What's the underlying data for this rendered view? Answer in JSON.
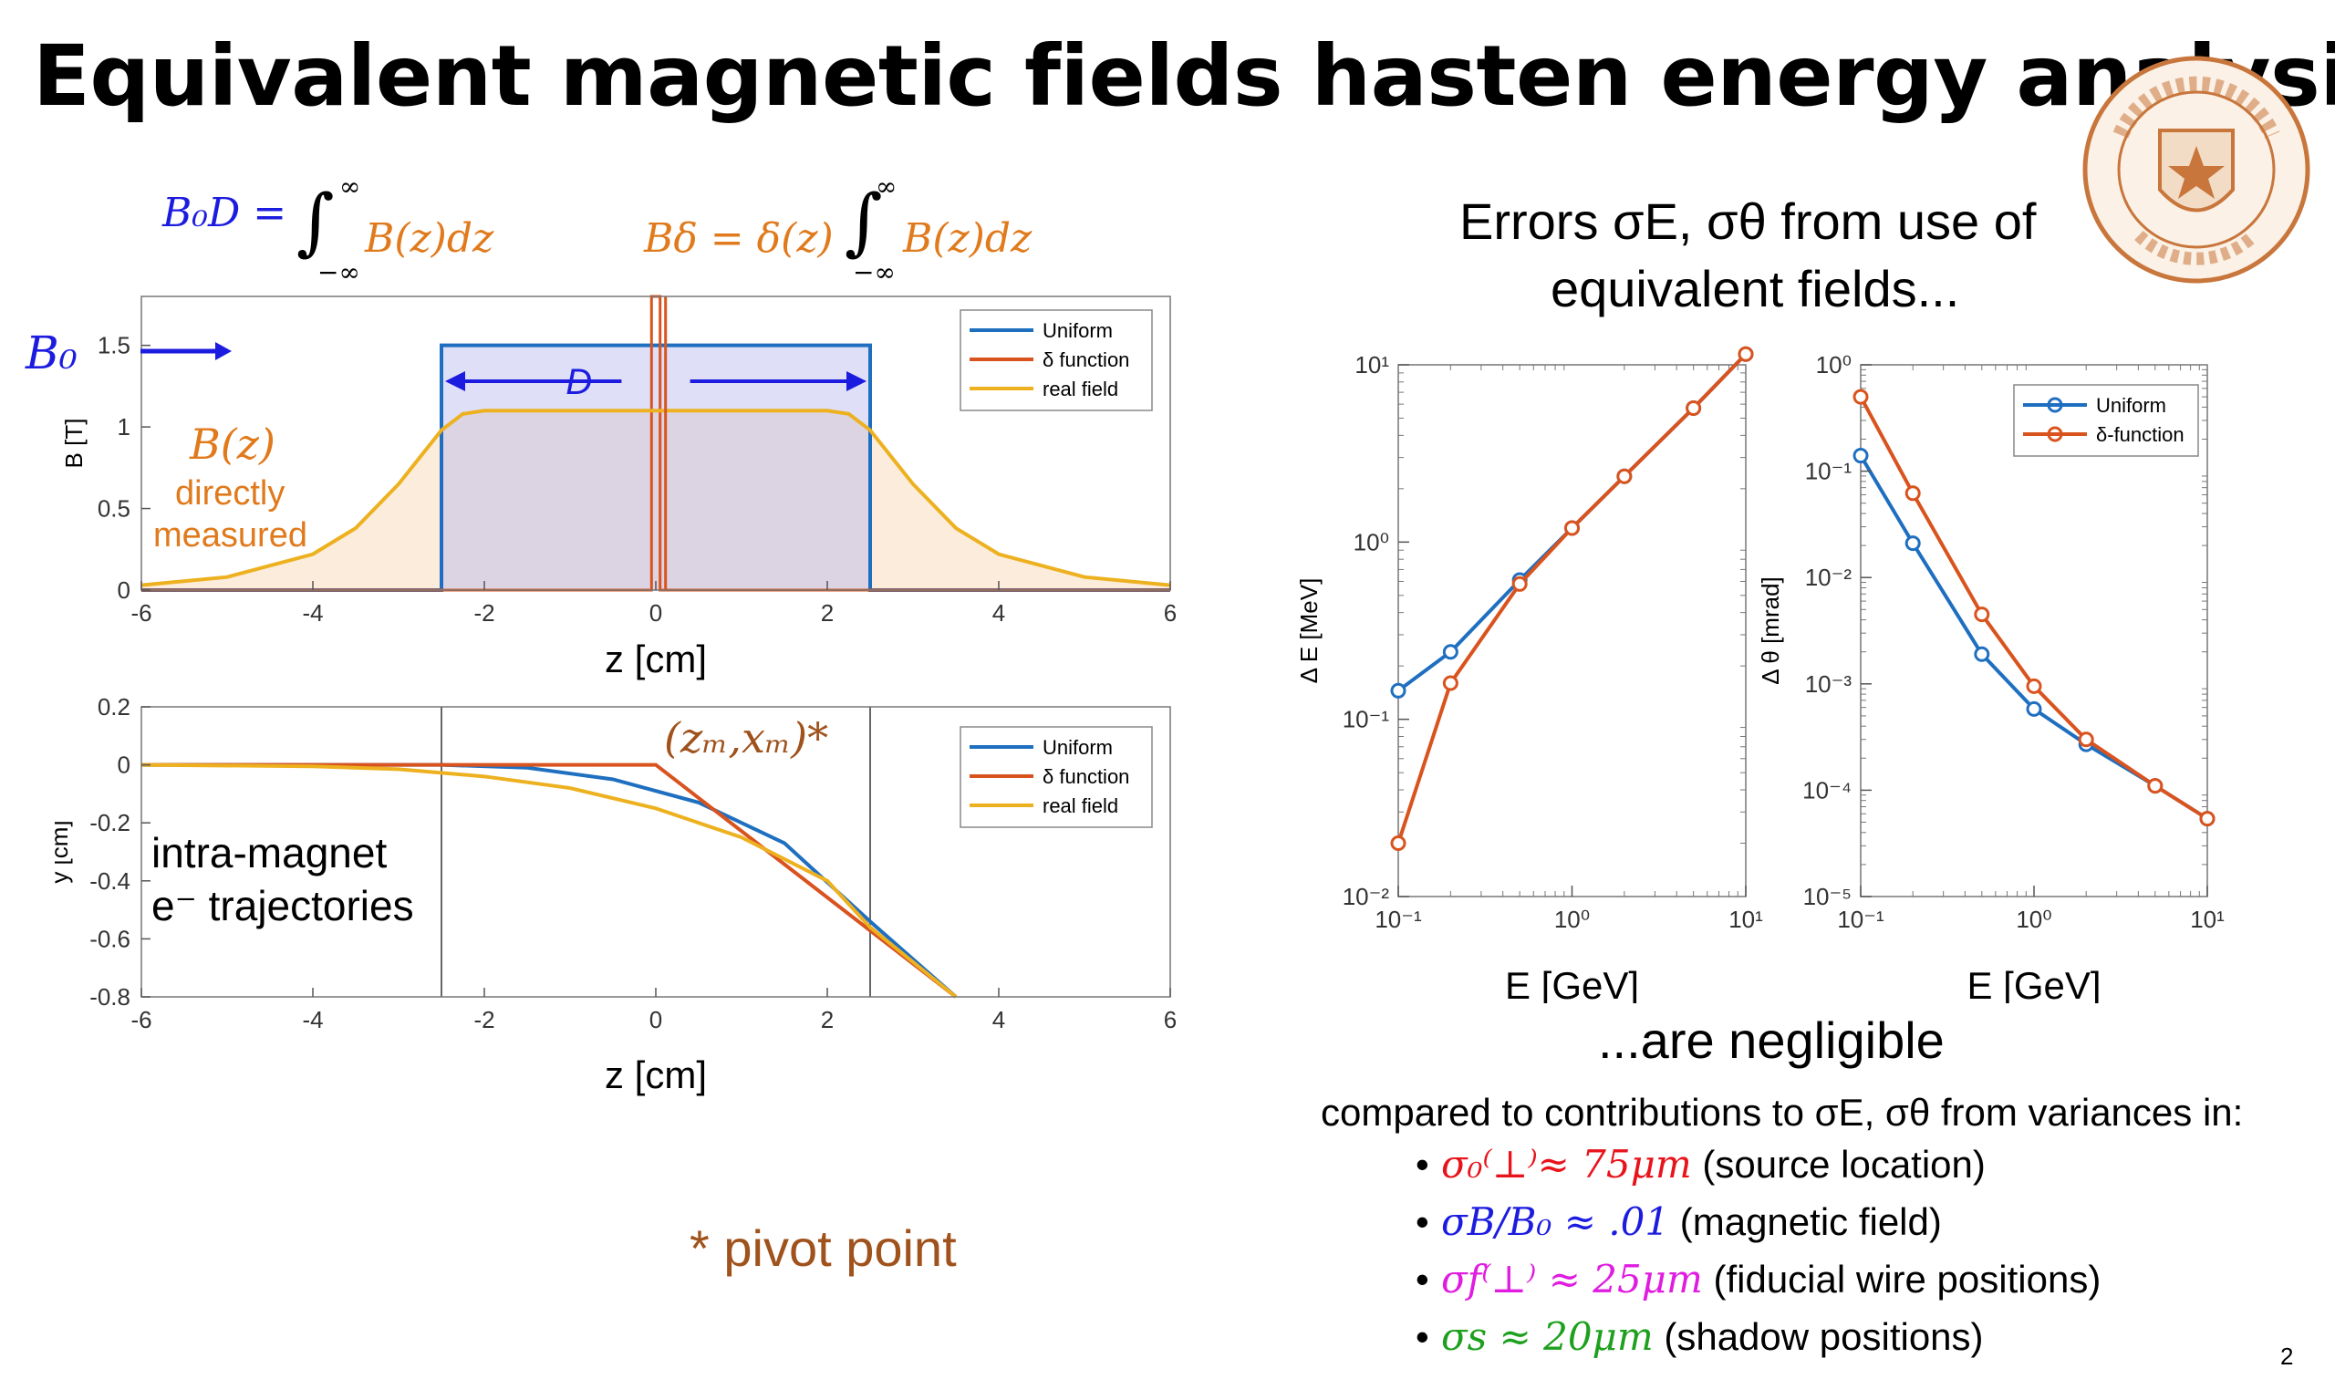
{
  "slide": {
    "title": "Equivalent magnetic fields hasten energy analysis",
    "page_number": "2",
    "formula_uniform": "B₀D = ∫ B(z)dz",
    "formula_uniform_lhs": "B₀D =",
    "formula_uniform_rhs": "B(z)dz",
    "formula_delta_lhs": "Bδ = δ(z)",
    "formula_delta_rhs": "B(z)dz",
    "integral_upper": "∞",
    "integral_lower": "−∞",
    "b0_label": "B₀",
    "d_label": "D",
    "bz_label": "B(z)",
    "bz_desc_1": "directly",
    "bz_desc_2": "measured",
    "pivot_label": "(zₘ,xₘ)*",
    "traj_label_1": "intra-magnet",
    "traj_label_2": "e⁻ trajectories",
    "pivot_note": "* pivot point",
    "errors_heading_1": "Errors σE, σθ from use of",
    "errors_heading_2": "equivalent fields...",
    "negligible": "...are negligible",
    "compared": "compared to contributions to σE, σθ from variances in:",
    "bullets": [
      {
        "math": "σ₀⁽⊥⁾≈ 75μm",
        "text": " (source location)",
        "color": "#e8141c"
      },
      {
        "math": "σB/B₀ ≈ .01",
        "text": " (magnetic field)",
        "color": "#1c1ce0"
      },
      {
        "math": "σf⁽⊥⁾ ≈ 25μm",
        "text": "  (fiducial wire positions)",
        "color": "#e01ce0"
      },
      {
        "math": "σs ≈ 20μm",
        "text": " (shadow positions)",
        "color": "#1ea01e"
      }
    ],
    "colors": {
      "uniform": "#1f6fc0",
      "delta": "#d9531e",
      "real": "#edb120",
      "blue_text": "#1c1ce0",
      "orange_text": "#e07a1c",
      "brown_text": "#a0521c"
    }
  },
  "chart_data": [
    {
      "type": "line",
      "xlabel": "z [cm]",
      "ylabel": "B [T]",
      "xlim": [
        -6,
        6
      ],
      "ylim": [
        0,
        1.8
      ],
      "xticks": [
        "-6",
        "-4",
        "-2",
        "0",
        "2",
        "4",
        "6"
      ],
      "yticks": [
        "0",
        "0.5",
        "1",
        "1.5"
      ],
      "legend": "top-right",
      "series": [
        {
          "name": "Uniform",
          "x": [
            -6,
            -2.5,
            -2.5,
            2.5,
            2.5,
            6
          ],
          "y": [
            0,
            0,
            1.5,
            1.5,
            0,
            0
          ]
        },
        {
          "name": "δ function",
          "x": [
            -6,
            -0.05,
            -0.05,
            0.05,
            0.05,
            6
          ],
          "y": [
            0,
            0,
            1.8,
            1.8,
            0,
            0
          ]
        },
        {
          "name": "real field",
          "x": [
            -6,
            -5,
            -4,
            -3.5,
            -3,
            -2.5,
            -2.25,
            -2,
            2,
            2.25,
            2.5,
            3,
            3.5,
            4,
            5,
            6
          ],
          "y": [
            0.03,
            0.08,
            0.22,
            0.38,
            0.65,
            0.98,
            1.08,
            1.1,
            1.1,
            1.08,
            0.98,
            0.65,
            0.38,
            0.22,
            0.08,
            0.03
          ]
        }
      ]
    },
    {
      "type": "line",
      "xlabel": "z [cm]",
      "ylabel": "y [cm]",
      "xlim": [
        -6,
        6
      ],
      "ylim": [
        -0.8,
        0.2
      ],
      "xticks": [
        "-6",
        "-4",
        "-2",
        "0",
        "2",
        "4",
        "6"
      ],
      "yticks": [
        "0.2",
        "0",
        "-0.2",
        "-0.4",
        "-0.6",
        "-0.8"
      ],
      "legend": "top-right",
      "vlines": [
        -2.5,
        2.5
      ],
      "series": [
        {
          "name": "Uniform",
          "x": [
            -6,
            -2.5,
            -1.5,
            -0.5,
            0.5,
            1.5,
            2.5,
            3.5
          ],
          "y": [
            0,
            0,
            -0.01,
            -0.05,
            -0.13,
            -0.27,
            -0.54,
            -0.8
          ]
        },
        {
          "name": "δ function",
          "x": [
            -6,
            0,
            3.5
          ],
          "y": [
            0,
            0,
            -0.8
          ]
        },
        {
          "name": "real field",
          "x": [
            -6,
            -4,
            -3,
            -2,
            -1,
            0,
            1,
            2,
            2.5,
            3.5
          ],
          "y": [
            0,
            -0.005,
            -0.015,
            -0.04,
            -0.08,
            -0.15,
            -0.25,
            -0.4,
            -0.56,
            -0.8
          ]
        }
      ]
    },
    {
      "type": "line",
      "xlabel": "E [GeV]",
      "ylabel": "Δ E [MeV]",
      "xscale": "log",
      "yscale": "log",
      "xlim": [
        0.1,
        10
      ],
      "ylim": [
        0.01,
        10
      ],
      "xticks": [
        "10⁻¹",
        "10⁰",
        "10¹"
      ],
      "yticks": [
        "10⁻²",
        "10⁻¹",
        "10⁰",
        "10¹"
      ],
      "series": [
        {
          "name": "Uniform",
          "x": [
            0.1,
            0.2,
            0.5,
            1,
            2,
            5,
            10
          ],
          "y": [
            0.145,
            0.24,
            0.61,
            1.2,
            2.35,
            5.7,
            11.5
          ]
        },
        {
          "name": "δ-function",
          "x": [
            0.1,
            0.2,
            0.5,
            1,
            2,
            5,
            10
          ],
          "y": [
            0.02,
            0.16,
            0.58,
            1.2,
            2.35,
            5.7,
            11.5
          ]
        }
      ]
    },
    {
      "type": "line",
      "xlabel": "E [GeV]",
      "ylabel": "Δ θ [mrad]",
      "xscale": "log",
      "yscale": "log",
      "xlim": [
        0.1,
        10
      ],
      "ylim": [
        1e-05,
        1
      ],
      "xticks": [
        "10⁻¹",
        "10⁰",
        "10¹"
      ],
      "yticks": [
        "10⁻⁵",
        "10⁻⁴",
        "10⁻³",
        "10⁻²",
        "10⁻¹",
        "10⁰"
      ],
      "legend": "top-right",
      "series": [
        {
          "name": "Uniform",
          "x": [
            0.1,
            0.2,
            0.5,
            1,
            2,
            5,
            10
          ],
          "y": [
            0.14,
            0.021,
            0.0019,
            0.00058,
            0.00027,
            0.00011,
            5.4e-05
          ]
        },
        {
          "name": "δ-function",
          "x": [
            0.1,
            0.2,
            0.5,
            1,
            2,
            5,
            10
          ],
          "y": [
            0.5,
            0.062,
            0.0045,
            0.00095,
            0.0003,
            0.00011,
            5.4e-05
          ]
        }
      ]
    }
  ]
}
